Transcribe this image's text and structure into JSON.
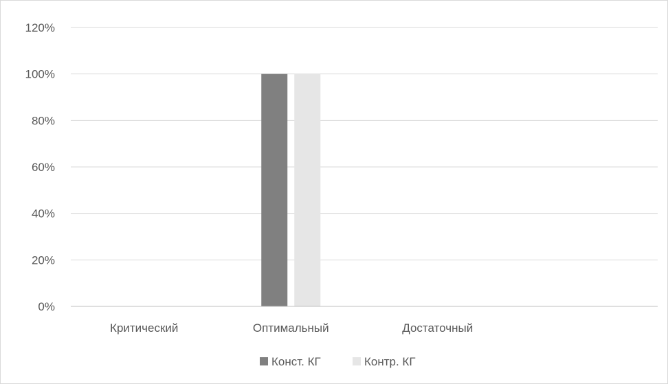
{
  "chart_data": {
    "type": "bar",
    "categories": [
      "Критический",
      "Оптимальный",
      "Достаточный",
      ""
    ],
    "series": [
      {
        "name": "Конст. КГ",
        "color": "#808080",
        "values": [
          0,
          100,
          0,
          0
        ]
      },
      {
        "name": "Контр. КГ",
        "color": "#e6e6e6",
        "values": [
          0,
          100,
          0,
          0
        ]
      }
    ],
    "yticks": [
      "0%",
      "20%",
      "40%",
      "60%",
      "80%",
      "100%",
      "120%"
    ],
    "ylim": [
      0,
      120
    ],
    "grid": true,
    "legend": "bottom",
    "title": "",
    "xlabel": "",
    "ylabel": ""
  }
}
